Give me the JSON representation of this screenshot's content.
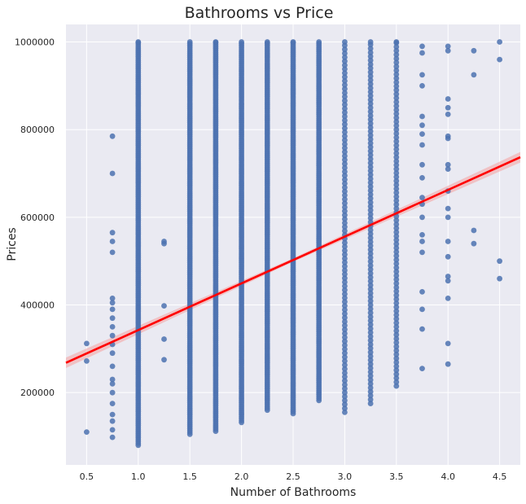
{
  "chart_data": {
    "type": "scatter",
    "title": "Bathrooms vs Price",
    "xlabel": "Number of Bathrooms",
    "ylabel": "Prices",
    "xlim": [
      0.3,
      4.7
    ],
    "ylim": [
      35000,
      1040000
    ],
    "xticks": [
      0.5,
      1.0,
      1.5,
      2.0,
      2.5,
      3.0,
      3.5,
      4.0,
      4.5
    ],
    "xtick_labels": [
      "0.5",
      "1.0",
      "1.5",
      "2.0",
      "2.5",
      "3.0",
      "3.5",
      "4.0",
      "4.5"
    ],
    "yticks": [
      200000,
      400000,
      600000,
      800000,
      1000000
    ],
    "ytick_labels": [
      "200000",
      "400000",
      "600000",
      "800000",
      "1000000"
    ],
    "grid": true,
    "colors": {
      "background": "#eaeaf2",
      "points": "#4c72b0",
      "regression_line": "#ff0000",
      "confidence_band": "#f4a6a6"
    },
    "regression": {
      "x": [
        0.3,
        4.7
      ],
      "y": [
        268000,
        737000
      ],
      "ci_halfwidth": 12000
    },
    "series": [
      {
        "columns": [
          {
            "x": 0.5,
            "y": [
              110000,
              272000,
              312000
            ]
          },
          {
            "x": 0.75,
            "y": [
              98000,
              115000,
              135000,
              150000,
              175000,
              200000,
              220000,
              230000,
              260000,
              290000,
              310000,
              330000,
              350000,
              370000,
              390000,
              405000,
              415000,
              520000,
              545000,
              565000,
              700000,
              785000
            ]
          },
          {
            "x": 1.0,
            "range": [
              80000,
              1000000
            ],
            "density": "dense"
          },
          {
            "x": 1.25,
            "y": [
              275000,
              322000,
              398000,
              540000,
              545000
            ]
          },
          {
            "x": 1.5,
            "range": [
              105000,
              1000000
            ],
            "density": "dense"
          },
          {
            "x": 1.75,
            "range": [
              112000,
              1000000
            ],
            "density": "dense"
          },
          {
            "x": 2.0,
            "range": [
              132000,
              1000000
            ],
            "density": "dense"
          },
          {
            "x": 2.25,
            "range": [
              160000,
              1000000
            ],
            "density": "dense"
          },
          {
            "x": 2.5,
            "range": [
              152000,
              1000000
            ],
            "density": "dense"
          },
          {
            "x": 2.75,
            "range": [
              182000,
              1000000
            ],
            "density": "dense"
          },
          {
            "x": 3.0,
            "range": [
              155000,
              1000000
            ],
            "density": "medium"
          },
          {
            "x": 3.25,
            "range": [
              175000,
              1000000
            ],
            "density": "medium"
          },
          {
            "x": 3.5,
            "range": [
              215000,
              1000000
            ],
            "density": "medium"
          },
          {
            "x": 3.75,
            "y": [
              255000,
              345000,
              390000,
              430000,
              520000,
              545000,
              560000,
              600000,
              630000,
              645000,
              690000,
              720000,
              765000,
              790000,
              810000,
              830000,
              900000,
              925000,
              975000,
              990000
            ]
          },
          {
            "x": 4.0,
            "y": [
              265000,
              312000,
              415000,
              455000,
              465000,
              510000,
              545000,
              600000,
              620000,
              660000,
              710000,
              720000,
              780000,
              785000,
              835000,
              850000,
              870000,
              980000,
              990000
            ]
          },
          {
            "x": 4.25,
            "y": [
              540000,
              570000,
              925000,
              980000
            ]
          },
          {
            "x": 4.5,
            "y": [
              460000,
              500000,
              960000,
              1000000
            ]
          }
        ]
      }
    ]
  }
}
